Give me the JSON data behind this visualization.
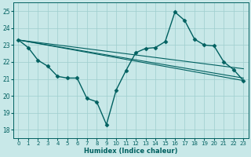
{
  "xlabel": "Humidex (Indice chaleur)",
  "xlim": [
    -0.5,
    23.5
  ],
  "ylim": [
    17.5,
    25.5
  ],
  "yticks": [
    18,
    19,
    20,
    21,
    22,
    23,
    24,
    25
  ],
  "xticks": [
    0,
    1,
    2,
    3,
    4,
    5,
    6,
    7,
    8,
    9,
    10,
    11,
    12,
    13,
    14,
    15,
    16,
    17,
    18,
    19,
    20,
    21,
    22,
    23
  ],
  "background_color": "#c8e8e8",
  "grid_color": "#9ecece",
  "line_color": "#006060",
  "main_line": {
    "x": [
      0,
      1,
      2,
      3,
      4,
      5,
      6,
      7,
      8,
      9,
      10,
      11,
      12,
      13,
      14,
      15,
      16,
      17,
      18,
      19,
      20,
      21,
      22,
      23
    ],
    "y": [
      23.3,
      22.85,
      22.1,
      21.75,
      21.15,
      21.05,
      21.05,
      19.85,
      19.65,
      18.3,
      20.35,
      21.5,
      22.55,
      22.8,
      22.85,
      23.2,
      24.95,
      24.45,
      23.35,
      23.0,
      22.95,
      22.0,
      21.55,
      20.9
    ],
    "marker": "D",
    "markersize": 2.5,
    "linewidth": 1.0
  },
  "extra_lines": [
    {
      "x": [
        0,
        23
      ],
      "y": [
        23.3,
        20.9
      ]
    },
    {
      "x": [
        0,
        23
      ],
      "y": [
        23.3,
        21.05
      ]
    },
    {
      "x": [
        0,
        23
      ],
      "y": [
        23.3,
        21.6
      ]
    }
  ]
}
